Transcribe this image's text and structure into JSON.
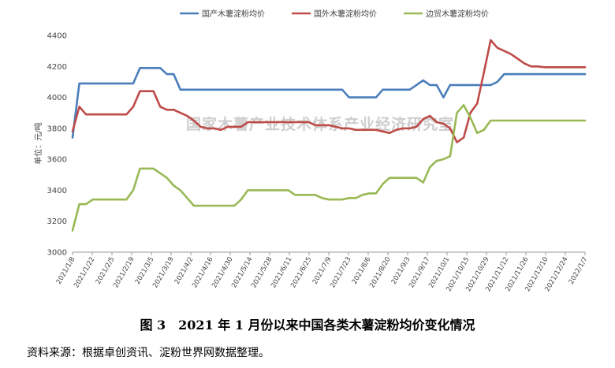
{
  "caption": "图 3　2021 年 1 月份以来中国各类木薯淀粉均价变化情况",
  "source": "资料来源：根据卓创资讯、淀粉世界网数据整理。",
  "watermark": "国家木薯产业技术体系产业经济研究室",
  "chart_data": {
    "type": "line",
    "ylabel": "单位：元/吨",
    "ylim": [
      3000,
      4400
    ],
    "yticks": [
      3000,
      3200,
      3400,
      3600,
      3800,
      4000,
      4200,
      4400
    ],
    "legend_position": "top",
    "grid": false,
    "x_tick_labels": [
      "2021/1/8",
      "2021/1/22",
      "2021/2/5",
      "2021/2/19",
      "2021/3/5",
      "2021/3/19",
      "2021/4/2",
      "2021/4/16",
      "2021/4/30",
      "2021/5/14",
      "2021/5/28",
      "2021/6/11",
      "2021/6/25",
      "2021/7/9",
      "2021/7/23",
      "2021/8/6",
      "2021/8/20",
      "2021/9/3",
      "2021/9/17",
      "2021/10/1",
      "2021/10/15",
      "2021/10/29",
      "2021/11/12",
      "2021/11/26",
      "2021/12/10",
      "2021/12/24",
      "2022/1/7"
    ],
    "series": [
      {
        "name": "国产木薯淀粉均价",
        "color": "#4a7ebb",
        "values": [
          3740,
          4090,
          4090,
          4090,
          4090,
          4090,
          4090,
          4090,
          4090,
          4090,
          4190,
          4190,
          4190,
          4190,
          4150,
          4150,
          4050,
          4050,
          4050,
          4050,
          4050,
          4050,
          4050,
          4050,
          4050,
          4050,
          4050,
          4050,
          4050,
          4050,
          4050,
          4050,
          4050,
          4050,
          4050,
          4050,
          4050,
          4050,
          4050,
          4050,
          4050,
          4000,
          4000,
          4000,
          4000,
          4000,
          4050,
          4050,
          4050,
          4050,
          4050,
          4080,
          4110,
          4080,
          4080,
          4000,
          4080,
          4080,
          4080,
          4080,
          4080,
          4080,
          4080,
          4100,
          4150,
          4150,
          4150,
          4150,
          4150,
          4150,
          4150,
          4150,
          4150,
          4150,
          4150,
          4150,
          4150
        ]
      },
      {
        "name": "国外木薯淀粉均价",
        "color": "#be4b48",
        "values": [
          3780,
          3940,
          3890,
          3890,
          3890,
          3890,
          3890,
          3890,
          3890,
          3940,
          4040,
          4040,
          4040,
          3940,
          3920,
          3920,
          3900,
          3880,
          3850,
          3810,
          3800,
          3800,
          3790,
          3810,
          3810,
          3810,
          3840,
          3840,
          3840,
          3840,
          3840,
          3840,
          3840,
          3840,
          3840,
          3840,
          3820,
          3820,
          3820,
          3810,
          3800,
          3800,
          3790,
          3790,
          3790,
          3790,
          3780,
          3770,
          3790,
          3800,
          3800,
          3810,
          3860,
          3880,
          3840,
          3830,
          3800,
          3710,
          3740,
          3900,
          3960,
          4160,
          4370,
          4320,
          4300,
          4280,
          4250,
          4220,
          4200,
          4200,
          4195,
          4195,
          4195,
          4195,
          4195,
          4195,
          4195
        ]
      },
      {
        "name": "边贸木薯淀粉均价",
        "color": "#98b954",
        "values": [
          3140,
          3310,
          3310,
          3340,
          3340,
          3340,
          3340,
          3340,
          3340,
          3400,
          3540,
          3540,
          3540,
          3510,
          3480,
          3430,
          3400,
          3350,
          3300,
          3300,
          3300,
          3300,
          3300,
          3300,
          3300,
          3340,
          3400,
          3400,
          3400,
          3400,
          3400,
          3400,
          3400,
          3370,
          3370,
          3370,
          3370,
          3350,
          3340,
          3340,
          3340,
          3350,
          3350,
          3370,
          3380,
          3380,
          3440,
          3480,
          3480,
          3480,
          3480,
          3480,
          3450,
          3550,
          3590,
          3600,
          3620,
          3900,
          3950,
          3870,
          3770,
          3790,
          3850,
          3850,
          3850,
          3850,
          3850,
          3850,
          3850,
          3850,
          3850,
          3850,
          3850,
          3850,
          3850,
          3850,
          3850
        ]
      }
    ]
  }
}
